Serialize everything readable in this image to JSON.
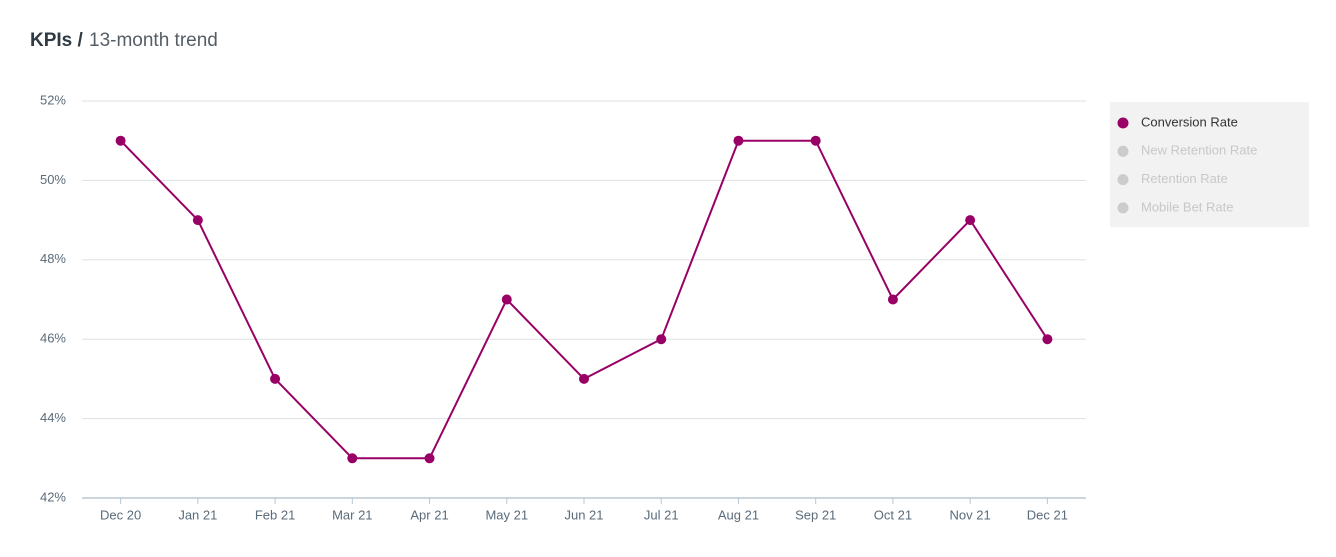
{
  "chart_data": {
    "type": "line",
    "title": "KPIs /",
    "subtitle": "13-month trend",
    "categories": [
      "Dec 20",
      "Jan 21",
      "Feb 21",
      "Mar 21",
      "Apr 21",
      "May 21",
      "Jun 21",
      "Jul 21",
      "Aug 21",
      "Sep 21",
      "Oct 21",
      "Nov 21",
      "Dec 21"
    ],
    "series": [
      {
        "name": "Conversion Rate",
        "color": "#990066",
        "visible": true,
        "values": [
          51,
          49,
          45,
          43,
          43,
          47,
          45,
          46,
          51,
          51,
          47,
          49,
          46
        ]
      },
      {
        "name": "New Retention Rate",
        "color": "#cccccc",
        "visible": false
      },
      {
        "name": "Retention Rate",
        "color": "#cccccc",
        "visible": false
      },
      {
        "name": "Mobile Bet Rate",
        "color": "#cccccc",
        "visible": false
      }
    ],
    "ylim": [
      42,
      52
    ],
    "yticks": [
      {
        "value": 42,
        "label": "42%"
      },
      {
        "value": 44,
        "label": "44%"
      },
      {
        "value": 46,
        "label": "46%"
      },
      {
        "value": 48,
        "label": "48%"
      },
      {
        "value": 50,
        "label": "50%"
      },
      {
        "value": 52,
        "label": "52%"
      }
    ],
    "grid": true,
    "legend": "right"
  }
}
